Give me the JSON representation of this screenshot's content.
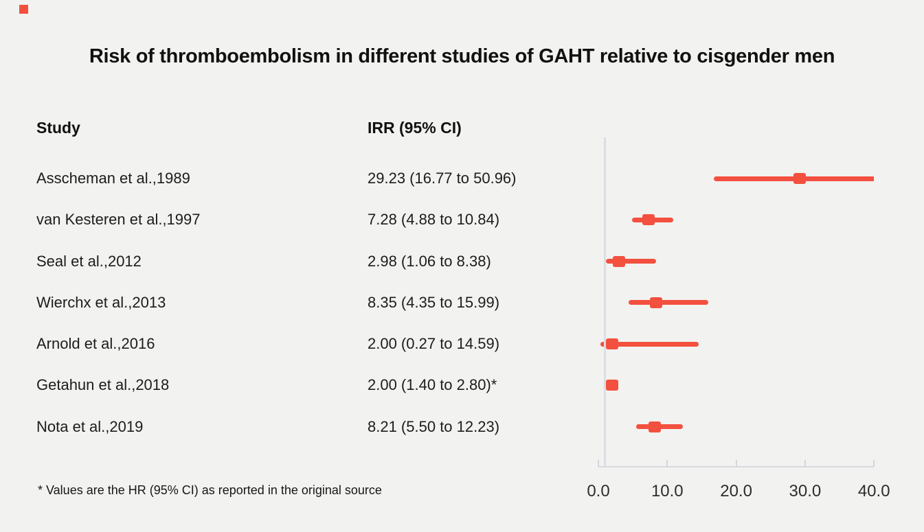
{
  "title": "Risk of thromboembolism in different studies of GAHT relative to cisgender men",
  "table": {
    "study_header": "Study",
    "irr_header": "IRR (95% CI)"
  },
  "footnote": "* Values are the HR (95% CI) as reported in the original source",
  "colors": {
    "background": "#f2f2f0",
    "accent_red": "#f3503f",
    "axis_gray": "#d6dade",
    "text": "#161616"
  },
  "chart_data": {
    "type": "scatter",
    "variant": "forest-plot",
    "title": "Risk of thromboembolism in different studies of GAHT relative to cisgender men",
    "columns": {
      "study": "Study",
      "irr": "IRR (95% CI)"
    },
    "rows": [
      {
        "study": "Asscheman et al.,1989",
        "irr_text": "29.23 (16.77 to 50.96)",
        "estimate": 29.23,
        "ci_low": 16.77,
        "ci_high": 50.96
      },
      {
        "study": "van Kesteren et al.,1997",
        "irr_text": "7.28 (4.88 to 10.84)",
        "estimate": 7.28,
        "ci_low": 4.88,
        "ci_high": 10.84
      },
      {
        "study": "Seal et al.,2012",
        "irr_text": "2.98 (1.06 to 8.38)",
        "estimate": 2.98,
        "ci_low": 1.06,
        "ci_high": 8.38
      },
      {
        "study": "Wierchx et al.,2013",
        "irr_text": "8.35 (4.35 to 15.99)",
        "estimate": 8.35,
        "ci_low": 4.35,
        "ci_high": 15.99
      },
      {
        "study": "Arnold et al.,2016",
        "irr_text": "2.00 (0.27 to 14.59)",
        "estimate": 2.0,
        "ci_low": 0.27,
        "ci_high": 14.59
      },
      {
        "study": "Getahun et al.,2018",
        "irr_text": "2.00 (1.40 to 2.80)*",
        "estimate": 2.0,
        "ci_low": 1.4,
        "ci_high": 2.8
      },
      {
        "study": "Nota et al.,2019",
        "irr_text": "8.21 (5.50 to 12.23)",
        "estimate": 8.21,
        "ci_low": 5.5,
        "ci_high": 12.23
      }
    ],
    "x_axis": {
      "range": [
        0,
        40
      ],
      "ticks": [
        0,
        10,
        20,
        30,
        40
      ],
      "tick_labels": [
        "0.0",
        "10.0",
        "20.0",
        "30.0",
        "40.0"
      ],
      "position": "bottom"
    },
    "reference_line_x": 1.0,
    "grid": "off",
    "legend": "none",
    "marker": "square",
    "marker_color": "#f3503f",
    "xlabel": "",
    "ylabel": ""
  }
}
